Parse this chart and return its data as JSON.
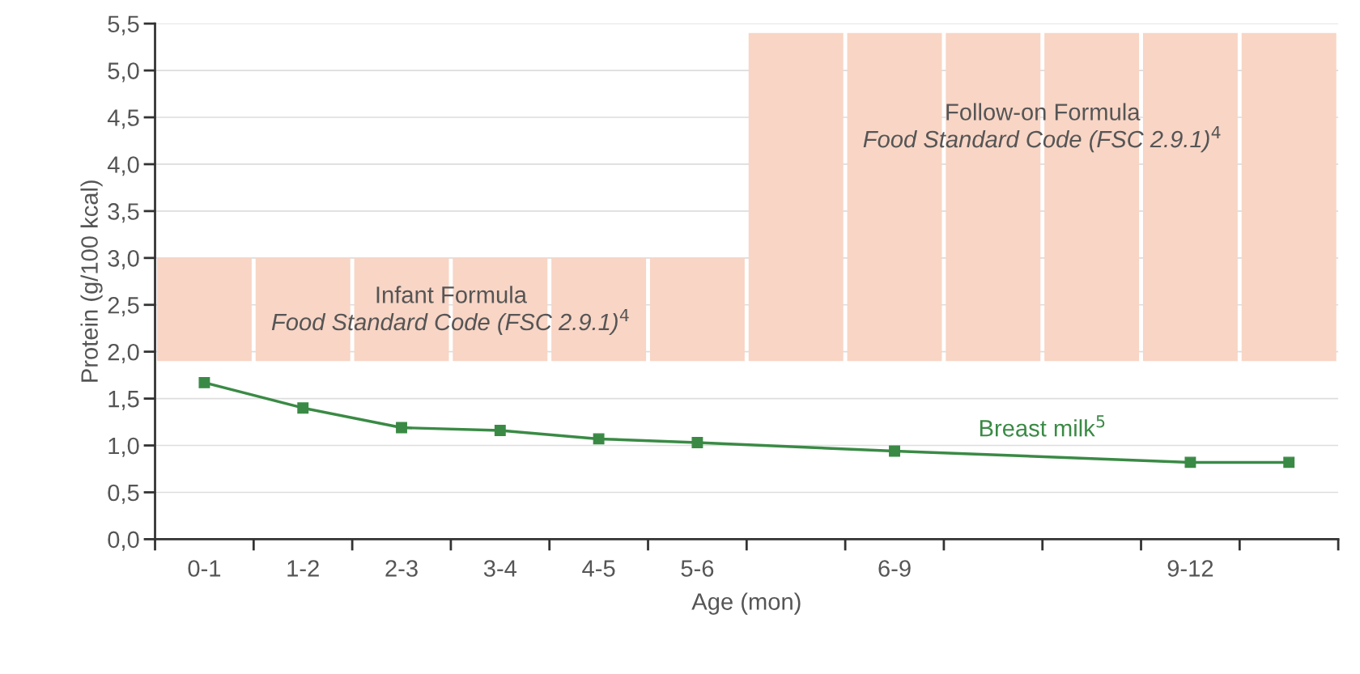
{
  "chart_data": {
    "type": "line",
    "xlabel": "Age (mon)",
    "ylabel": "Protein (g/100 kcal)",
    "categories": [
      "0-1",
      "1-2",
      "2-3",
      "3-4",
      "4-5",
      "5-6",
      null,
      "6-9",
      null,
      null,
      "9-12",
      null
    ],
    "ylim": [
      0,
      5.5
    ],
    "yticks": [
      {
        "value": 0,
        "label": "0,0"
      },
      {
        "value": 0.5,
        "label": "0,5"
      },
      {
        "value": 1,
        "label": "1,0"
      },
      {
        "value": 1.5,
        "label": "1,5"
      },
      {
        "value": 2,
        "label": "2,0"
      },
      {
        "value": 2.5,
        "label": "2,5"
      },
      {
        "value": 3,
        "label": "3,0"
      },
      {
        "value": 3.5,
        "label": "3,5"
      },
      {
        "value": 4,
        "label": "4,0"
      },
      {
        "value": 4.5,
        "label": "4,5"
      },
      {
        "value": 5,
        "label": "5,0"
      },
      {
        "value": 5.5,
        "label": "5,5"
      }
    ],
    "grid": "y",
    "series": [
      {
        "type": "bar",
        "color": "#f8d5c5",
        "base": [
          1.9,
          1.9,
          1.9,
          1.9,
          1.9,
          1.9,
          1.9,
          1.9,
          1.9,
          1.9,
          1.9,
          1.9
        ],
        "values": [
          1.1,
          1.1,
          1.1,
          1.1,
          1.1,
          1.1,
          3.5,
          3.5,
          3.5,
          3.5,
          3.5,
          3.5
        ]
      },
      {
        "name": "Breast milk$^{5}$",
        "color": "#3a8a45",
        "marker": "square",
        "values": [
          1.67,
          1.4,
          1.19,
          1.16,
          1.07,
          1.03,
          null,
          0.94,
          null,
          null,
          0.82,
          0.82
        ]
      }
    ],
    "annotations": [
      "Infant Formula\nFood Standard Code (FSC 2.9.1)$^{4}$",
      "Follow-on Formula\nFood Standard Code (FSC 2.9.1)$^{4}$"
    ]
  }
}
